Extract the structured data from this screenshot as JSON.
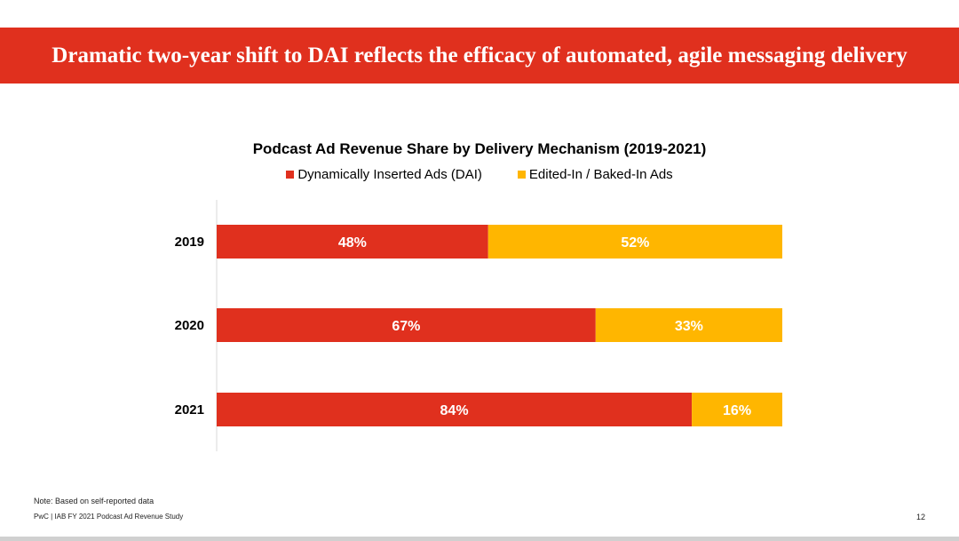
{
  "header": {
    "title": "Dramatic two-year shift to DAI reflects the efficacy of automated, agile messaging delivery"
  },
  "colors": {
    "banner": "#e0301e",
    "dai": "#e0301e",
    "baked": "#ffb600"
  },
  "chart_data": {
    "type": "bar",
    "orientation": "horizontal",
    "stacked": true,
    "title": "Podcast Ad Revenue Share by Delivery Mechanism (2019-2021)",
    "categories": [
      "2019",
      "2020",
      "2021"
    ],
    "series": [
      {
        "name": "Dynamically Inserted Ads (DAI)",
        "values": [
          48,
          67,
          84
        ],
        "labels": [
          "48%",
          "67%",
          "84%"
        ],
        "color": "#e0301e"
      },
      {
        "name": "Edited-In / Baked-In Ads",
        "values": [
          52,
          33,
          16
        ],
        "labels": [
          "52%",
          "33%",
          "16%"
        ],
        "color": "#ffb600"
      }
    ],
    "xlim": [
      0,
      100
    ],
    "legend": "top-center",
    "grid": false
  },
  "footnote": "Note: Based on self-reported data",
  "footer": "PwC  |  IAB FY 2021 Podcast Ad Revenue Study",
  "page_number": "12"
}
